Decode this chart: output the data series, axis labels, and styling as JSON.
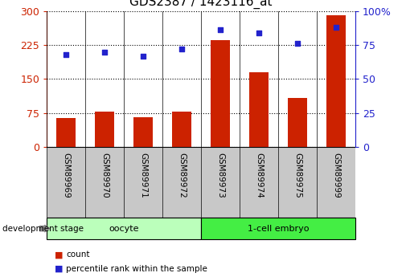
{
  "title": "GDS2387 / 1423116_at",
  "samples": [
    "GSM89969",
    "GSM89970",
    "GSM89971",
    "GSM89972",
    "GSM89973",
    "GSM89974",
    "GSM89975",
    "GSM89999"
  ],
  "counts": [
    63,
    78,
    65,
    78,
    235,
    165,
    108,
    290
  ],
  "percentiles": [
    68,
    70,
    67,
    72,
    86,
    84,
    76,
    88
  ],
  "bar_color": "#cc2200",
  "dot_color": "#2222cc",
  "left_ylim": [
    0,
    300
  ],
  "right_ylim": [
    0,
    100
  ],
  "left_yticks": [
    0,
    75,
    150,
    225,
    300
  ],
  "right_yticks": [
    0,
    25,
    50,
    75,
    100
  ],
  "left_yticklabels": [
    "0",
    "75",
    "150",
    "225",
    "300"
  ],
  "right_yticklabels": [
    "0",
    "25",
    "50",
    "75",
    "100%"
  ],
  "groups": [
    {
      "label": "oocyte",
      "start": 0,
      "end": 3,
      "color": "#bbffbb"
    },
    {
      "label": "1-cell embryo",
      "start": 4,
      "end": 7,
      "color": "#44ee44"
    }
  ],
  "group_row_label": "development stage",
  "legend_items": [
    {
      "label": "count",
      "color": "#cc2200"
    },
    {
      "label": "percentile rank within the sample",
      "color": "#2222cc"
    }
  ],
  "grid_color": "#000000",
  "background_color": "#ffffff",
  "tick_label_area_bg": "#c8c8c8",
  "title_fontsize": 11,
  "axis_fontsize": 9,
  "label_fontsize": 8
}
